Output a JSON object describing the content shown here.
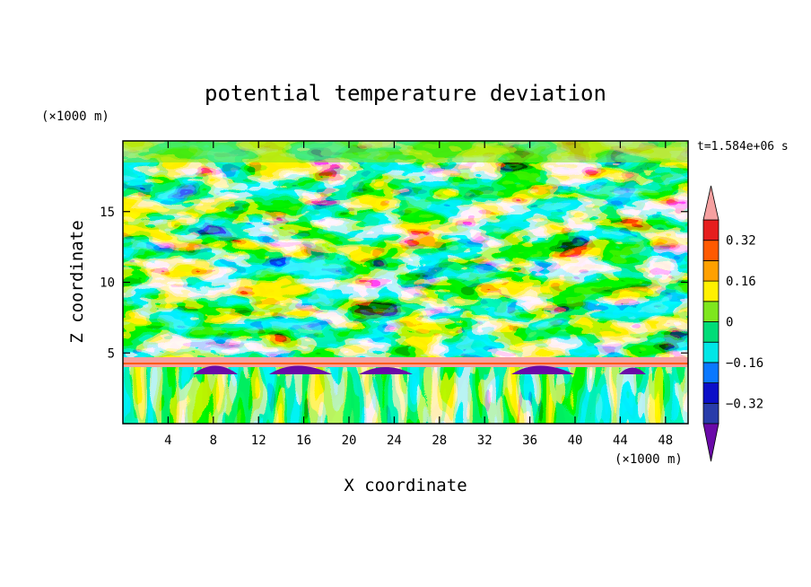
{
  "chart_data": {
    "type": "heatmap",
    "title": "potential temperature deviation",
    "xlabel": "X coordinate",
    "ylabel": "Z coordinate",
    "x_unit_label": "(×1000 m)",
    "y_unit_label": "(×1000 m)",
    "time_label": "t=1.584e+06 s",
    "xlim": [
      0,
      50
    ],
    "ylim": [
      0,
      20
    ],
    "x_ticks": [
      4,
      8,
      12,
      16,
      20,
      24,
      28,
      32,
      36,
      40,
      44,
      48
    ],
    "x_tick_labels": [
      "4",
      "8",
      "12",
      "16",
      "20",
      "24",
      "28",
      "32",
      "36",
      "40",
      "44",
      "48"
    ],
    "y_ticks": [
      5,
      10,
      15
    ],
    "y_tick_labels": [
      "5",
      "10",
      "15"
    ],
    "colorbar": {
      "levels": [
        -0.4,
        -0.32,
        -0.24,
        -0.16,
        -0.08,
        0,
        0.08,
        0.16,
        0.24,
        0.32,
        0.4
      ],
      "labeled_levels": [
        0.32,
        0.16,
        0,
        -0.16,
        -0.32
      ],
      "labels": [
        "0.32",
        "0.16",
        "0",
        "−0.16",
        "−0.32"
      ],
      "colors": [
        "#6a0aa8",
        "#283caa",
        "#0b0fc8",
        "#0a78ff",
        "#00e6e6",
        "#00dc78",
        "#7ee61e",
        "#fff000",
        "#ffa000",
        "#ff5a00",
        "#e61e1e",
        "#f5a0a0"
      ],
      "extend": "both"
    },
    "bands": [
      {
        "z_range": [
          0,
          3.5
        ],
        "description": "vertical convective plumes"
      },
      {
        "z_range": [
          3.5,
          4.5
        ],
        "description": "strong positive layer"
      },
      {
        "z_range": [
          4.5,
          7
        ],
        "description": "negative / positive interleaved layer"
      },
      {
        "z_range": [
          7,
          18
        ],
        "description": "alternating slanted wave structures"
      },
      {
        "z_range": [
          18,
          20
        ],
        "description": "weak near-zero region"
      }
    ]
  }
}
